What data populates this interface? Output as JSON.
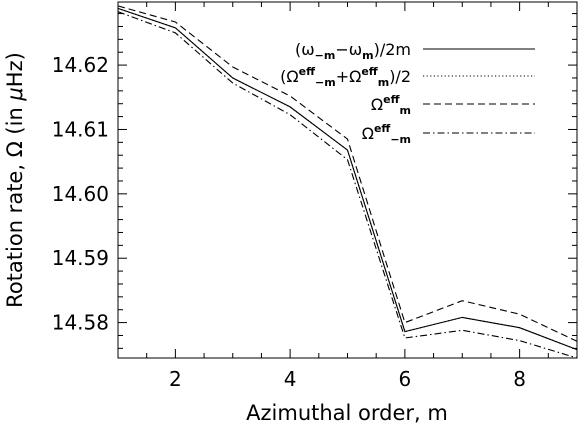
{
  "chart_data": {
    "type": "line",
    "xlabel": "Azimuthal order, m",
    "ylabel_prefix": "Rotation rate, Ω (in ",
    "ylabel_unit_mu": "μ",
    "ylabel_unit_rest": "Hz)",
    "xlim": [
      1,
      9
    ],
    "ylim": [
      14.5745,
      14.6298
    ],
    "xticks": [
      2,
      4,
      6,
      8
    ],
    "yticks": [
      14.58,
      14.59,
      14.6,
      14.61,
      14.62
    ],
    "ytick_labels": [
      "14.58",
      "14.59",
      "14.60",
      "14.61",
      "14.62"
    ],
    "x": [
      1,
      2,
      3,
      4,
      5,
      6,
      7,
      8,
      9
    ],
    "series": [
      {
        "id": "s1",
        "legend": {
          "base": "(ω",
          "sub1": "−m",
          "mid": "−ω",
          "sub2": "m",
          "tail": ")/2m"
        },
        "dash": "none",
        "values": [
          14.6288,
          14.6258,
          14.618,
          14.6135,
          14.6068,
          14.5786,
          14.5808,
          14.5792,
          14.5758
        ]
      },
      {
        "id": "s2",
        "legend": {
          "base": "(Ω",
          "sup1": "eff",
          "sub1": "−m",
          "mid": "+Ω",
          "sup2": "eff",
          "sub2": "m",
          "tail": ")/2"
        },
        "dash": "1.2,2.4",
        "values": [
          14.6288,
          14.6258,
          14.618,
          14.6135,
          14.6068,
          14.5786,
          14.5808,
          14.5792,
          14.5758
        ]
      },
      {
        "id": "s3",
        "legend": {
          "base": "Ω",
          "sup1": "eff",
          "sub1": "m"
        },
        "dash": "7,4",
        "values": [
          14.6292,
          14.6267,
          14.6197,
          14.6152,
          14.6085,
          14.58,
          14.5834,
          14.5813,
          14.5771
        ]
      },
      {
        "id": "s4",
        "legend": {
          "base": "Ω",
          "sup1": "eff",
          "sub1": "−m"
        },
        "dash": "7,3,1.5,3",
        "values": [
          14.6283,
          14.625,
          14.6172,
          14.6123,
          14.6053,
          14.5776,
          14.5788,
          14.5772,
          14.5745
        ]
      }
    ],
    "legend_position": "top-right",
    "grid": false
  }
}
